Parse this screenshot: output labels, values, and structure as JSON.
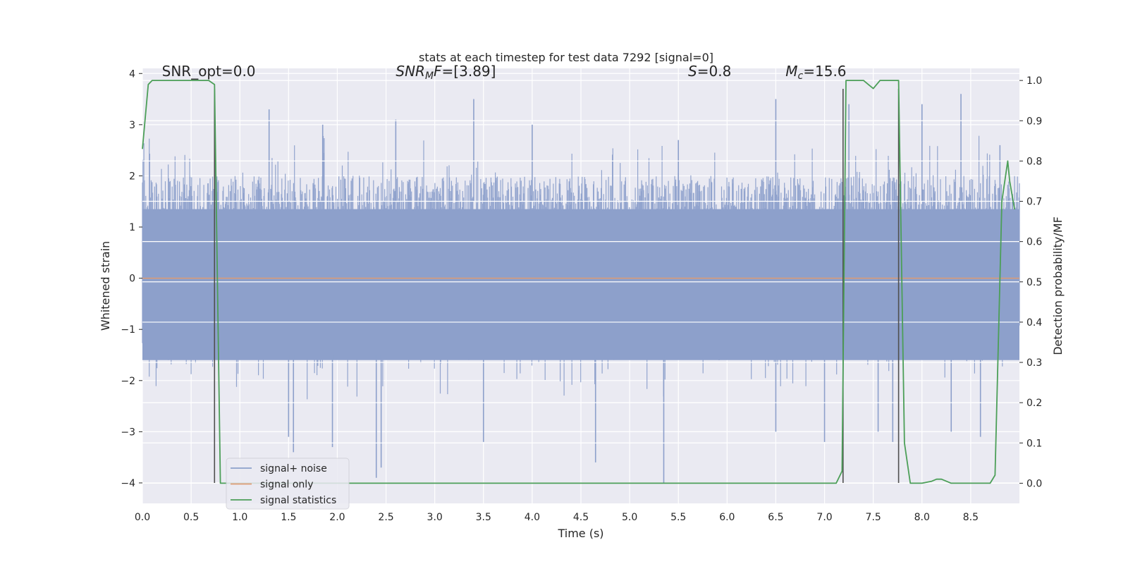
{
  "chart_data": {
    "type": "line",
    "title": "stats at each timestep for test data 7292 [signal=0]",
    "xlabel": "Time (s)",
    "ylabel": "Whitened strain",
    "y2label": "Detection probability/MF",
    "xlim": [
      0.0,
      9.0
    ],
    "ylim": [
      -4.4,
      4.1
    ],
    "y2lim": [
      -0.05,
      1.03
    ],
    "x_ticks": [
      0.0,
      0.5,
      1.0,
      1.5,
      2.0,
      2.5,
      3.0,
      3.5,
      4.0,
      4.5,
      5.0,
      5.5,
      6.0,
      6.5,
      7.0,
      7.5,
      8.0,
      8.5
    ],
    "x_tick_labels": [
      "0.0",
      "0.5",
      "1.0",
      "1.5",
      "2.0",
      "2.5",
      "3.0",
      "3.5",
      "4.0",
      "4.5",
      "5.0",
      "5.5",
      "6.0",
      "6.5",
      "7.0",
      "7.5",
      "8.0",
      "8.5"
    ],
    "y_ticks": [
      4,
      3,
      2,
      1,
      0,
      -1,
      -2,
      -3,
      -4
    ],
    "y_tick_labels": [
      "4",
      "3",
      "2",
      "1",
      "0",
      "−1",
      "−2",
      "−3",
      "−4"
    ],
    "y2_ticks": [
      1.0,
      0.9,
      0.8,
      0.7,
      0.6,
      0.5,
      0.4,
      0.3,
      0.2,
      0.1,
      0.0
    ],
    "y2_tick_labels": [
      "1.0",
      "0.9",
      "0.8",
      "0.7",
      "0.6",
      "0.5",
      "0.4",
      "0.3",
      "0.2",
      "0.1",
      "0.0"
    ],
    "grid": true,
    "legend_placement": "lower-left",
    "colors": {
      "background": "#eaeaf2",
      "noise": "#8da0cb",
      "signal_only": "#dd9b73",
      "statistics": "#4c9f58",
      "vline": "#4f4f4f",
      "grid": "#ffffff"
    },
    "annotations": [
      {
        "prefix": "SNR_opt=0.0",
        "sub": "",
        "suffix": "",
        "x": 0.2,
        "y": 3.95
      },
      {
        "prefix": "SNR",
        "sub": "M",
        "suffix": "F=[3.89]",
        "x": 2.6,
        "y": 3.95
      },
      {
        "prefix": "S",
        "sub": "",
        "suffix": "=0.8",
        "x": 5.6,
        "y": 3.95
      },
      {
        "prefix": "M",
        "sub": "c",
        "suffix": "=15.6",
        "x": 6.6,
        "y": 3.95
      }
    ],
    "series": [
      {
        "name": "signal+ noise",
        "style": "noise-band",
        "x_range": [
          0.0,
          9.0
        ],
        "typical_range": [
          -1.6,
          2.0
        ],
        "spikes": [
          {
            "x": 0.75,
            "y": 2.6
          },
          {
            "x": 1.3,
            "y": 3.3
          },
          {
            "x": 1.5,
            "y": -3.1
          },
          {
            "x": 1.55,
            "y": -3.4
          },
          {
            "x": 1.85,
            "y": 3.0
          },
          {
            "x": 1.95,
            "y": -3.3
          },
          {
            "x": 2.4,
            "y": -3.9
          },
          {
            "x": 2.45,
            "y": -3.7
          },
          {
            "x": 2.6,
            "y": 3.1
          },
          {
            "x": 3.4,
            "y": 3.5
          },
          {
            "x": 3.5,
            "y": -3.2
          },
          {
            "x": 4.0,
            "y": 3.0
          },
          {
            "x": 4.65,
            "y": -3.6
          },
          {
            "x": 5.35,
            "y": -4.0
          },
          {
            "x": 5.5,
            "y": 2.7
          },
          {
            "x": 6.5,
            "y": 3.5
          },
          {
            "x": 6.5,
            "y": -3.0
          },
          {
            "x": 7.0,
            "y": -3.2
          },
          {
            "x": 7.25,
            "y": 3.4
          },
          {
            "x": 7.55,
            "y": -3.0
          },
          {
            "x": 7.7,
            "y": -3.2
          },
          {
            "x": 8.0,
            "y": 3.4
          },
          {
            "x": 8.3,
            "y": -3.0
          },
          {
            "x": 8.4,
            "y": 3.6
          },
          {
            "x": 8.6,
            "y": -3.1
          },
          {
            "x": 8.8,
            "y": 2.6
          }
        ]
      },
      {
        "name": "signal only",
        "style": "line",
        "x": [
          0.0,
          9.0
        ],
        "y": [
          0.0,
          0.0
        ]
      },
      {
        "name": "signal statistics",
        "style": "line",
        "axis": "right",
        "x": [
          0.0,
          0.06,
          0.1,
          0.2,
          0.3,
          0.4,
          0.5,
          0.6,
          0.68,
          0.74,
          0.8,
          0.9,
          1.0,
          2.0,
          3.0,
          4.0,
          5.0,
          6.0,
          7.0,
          7.12,
          7.18,
          7.22,
          7.3,
          7.4,
          7.45,
          7.5,
          7.57,
          7.65,
          7.72,
          7.76,
          7.82,
          7.88,
          8.0,
          8.1,
          8.15,
          8.2,
          8.25,
          8.3,
          8.4,
          8.5,
          8.6,
          8.7,
          8.75,
          8.82,
          8.88,
          8.9,
          8.95
        ],
        "y": [
          0.83,
          0.99,
          1.0,
          1.0,
          1.0,
          1.0,
          1.0,
          1.0,
          1.0,
          0.99,
          0.0,
          0.0,
          0.0,
          0.0,
          0.0,
          0.0,
          0.0,
          0.0,
          0.0,
          0.0,
          0.03,
          1.0,
          1.0,
          1.0,
          0.99,
          0.98,
          1.0,
          1.0,
          1.0,
          1.0,
          0.1,
          0.0,
          0.0,
          0.005,
          0.01,
          0.01,
          0.005,
          0.0,
          0.0,
          0.0,
          0.0,
          0.0,
          0.02,
          0.7,
          0.8,
          0.75,
          0.68
        ]
      }
    ],
    "vlines": [
      {
        "x": 0.74,
        "y_range": [
          -4.0,
          3.7
        ]
      },
      {
        "x": 7.19,
        "y_range": [
          -4.0,
          3.7
        ]
      },
      {
        "x": 7.76,
        "y_range": [
          -4.0,
          3.7
        ]
      }
    ],
    "legend": [
      "signal+ noise",
      "signal only",
      "signal statistics"
    ]
  }
}
